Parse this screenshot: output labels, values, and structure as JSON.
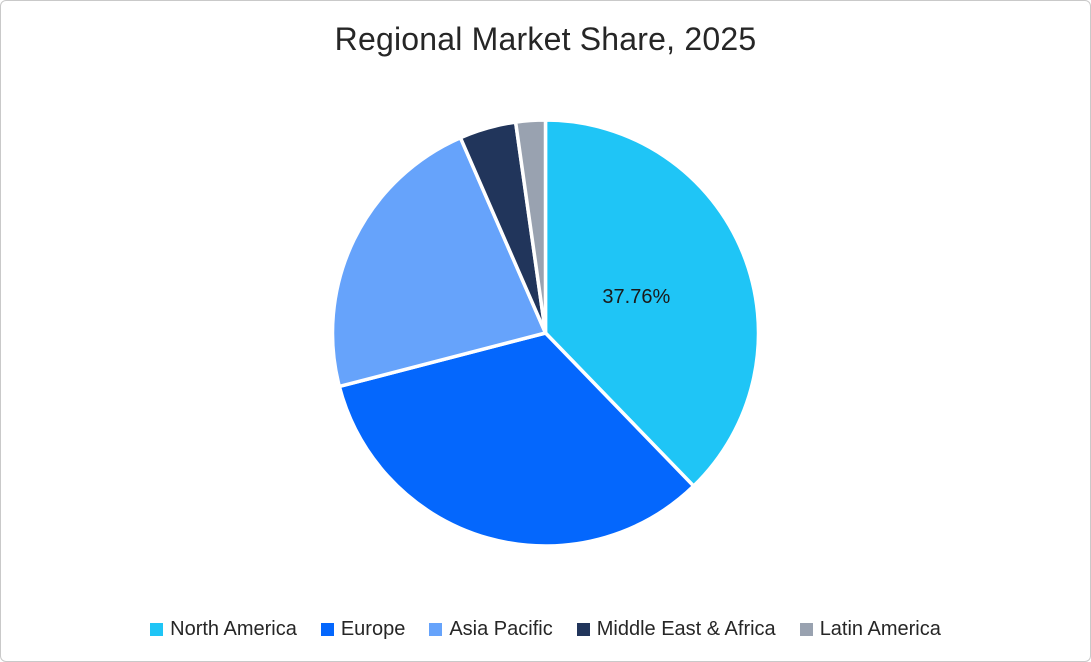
{
  "frame": {
    "background_color": "#ffffff",
    "border_color": "#c9c9c9"
  },
  "chart_data": {
    "type": "pie",
    "title": "Regional Market Share, 2025",
    "title_color": "#262626",
    "start_angle_deg": 0,
    "direction": "clockwise",
    "legend_position": "bottom",
    "legend_text_color": "#262626",
    "separator_color": "#ffffff",
    "data_label_color": "#1a1a1a",
    "slices": [
      {
        "name": "North America",
        "value": 37.76,
        "color": "#1fc5f6",
        "data_label": "37.76%"
      },
      {
        "name": "Europe",
        "value": 33.2,
        "color": "#0467fd",
        "data_label": ""
      },
      {
        "name": "Asia Pacific",
        "value": 22.5,
        "color": "#66a3fb",
        "data_label": ""
      },
      {
        "name": "Middle East & Africa",
        "value": 4.3,
        "color": "#21355b",
        "data_label": ""
      },
      {
        "name": "Latin America",
        "value": 2.24,
        "color": "#99a2b0",
        "data_label": ""
      }
    ]
  }
}
